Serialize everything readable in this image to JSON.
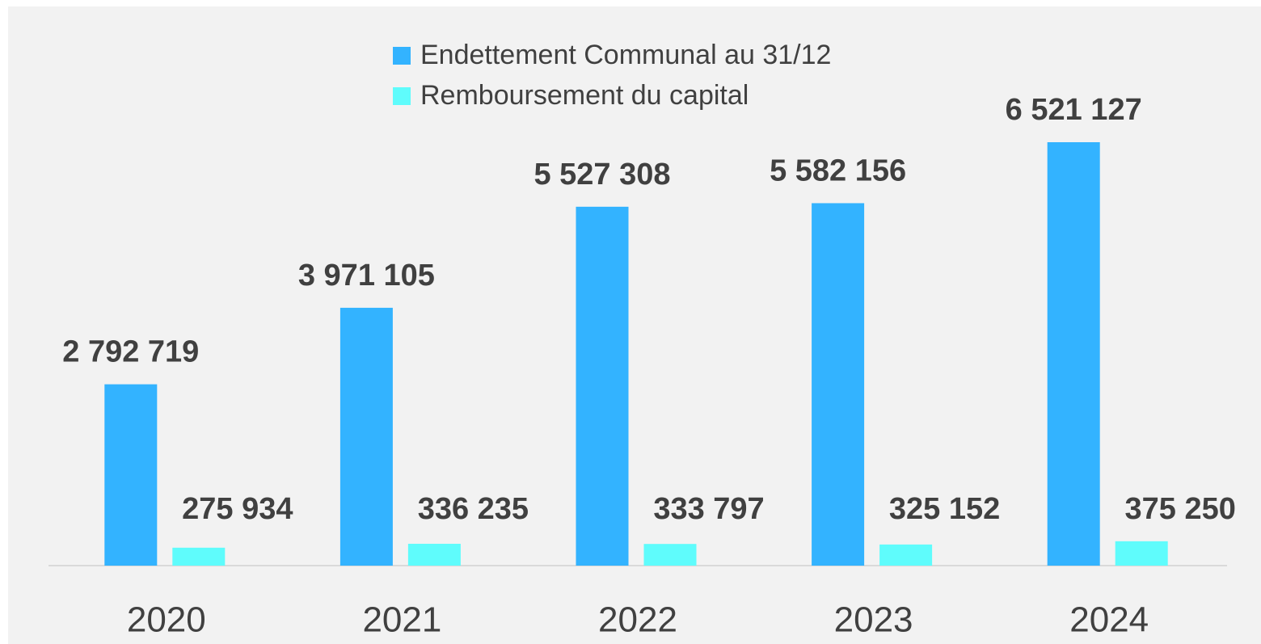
{
  "chart_data": {
    "type": "bar",
    "categories": [
      "2020",
      "2021",
      "2022",
      "2023",
      "2024"
    ],
    "series": [
      {
        "name": "Endettement Communal au 31/12",
        "color": "#33b3ff",
        "values": [
          2792719,
          3971105,
          5527308,
          5582156,
          6521127
        ],
        "value_labels": [
          "2 792 719",
          "3 971 105",
          "5 527 308",
          "5 582 156",
          "6 521 127"
        ]
      },
      {
        "name": "Remboursement du capital",
        "color": "#5ffcfc",
        "values": [
          275934,
          336235,
          333797,
          325152,
          375250
        ],
        "value_labels": [
          "275 934",
          "336 235",
          "333 797",
          "325 152",
          "375 250"
        ]
      }
    ],
    "legend": "top"
  }
}
